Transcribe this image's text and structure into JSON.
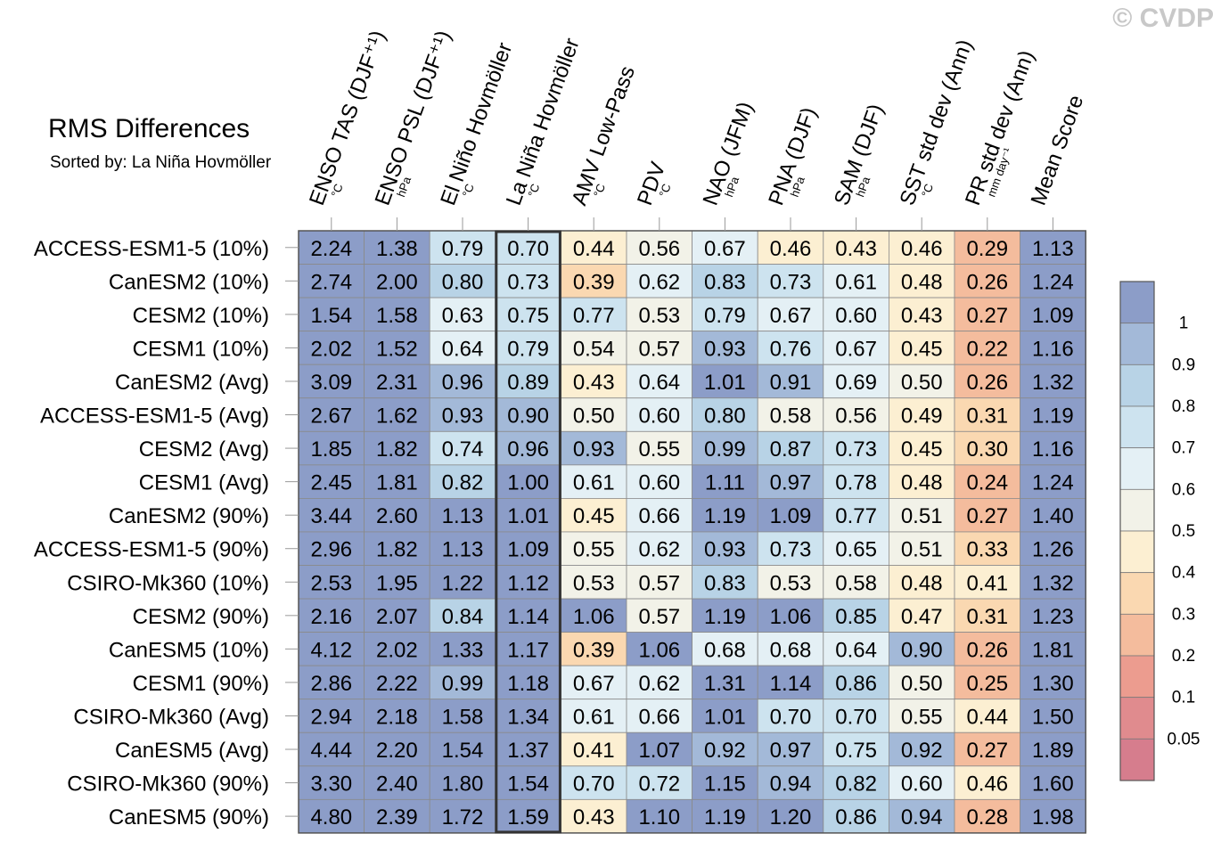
{
  "watermark": "© CVDP",
  "chart_data": {
    "type": "heatmap",
    "title": "RMS Differences",
    "subtitle": "Sorted by: La Niña Hovmöller",
    "columns": [
      {
        "label": "ENSO TAS (DJF⁺¹)",
        "unit": "°C"
      },
      {
        "label": "ENSO PSL (DJF⁺¹)",
        "unit": "hPa"
      },
      {
        "label": "El Niño Hovmöller",
        "unit": "°C"
      },
      {
        "label": "La Niña Hovmöller",
        "unit": "°C"
      },
      {
        "label": "AMV Low-Pass",
        "unit": "°C"
      },
      {
        "label": "PDV",
        "unit": "°C"
      },
      {
        "label": "NAO (JFM)",
        "unit": "hPa"
      },
      {
        "label": "PNA (DJF)",
        "unit": "hPa"
      },
      {
        "label": "SAM (DJF)",
        "unit": "hPa"
      },
      {
        "label": "SST std dev (Ann)",
        "unit": "°C"
      },
      {
        "label": "PR std dev (Ann)",
        "unit": "mm day⁻¹"
      },
      {
        "label": "Mean Score",
        "unit": ""
      }
    ],
    "sorted_column": "La Niña Hovmöller",
    "rows": [
      {
        "label": "ACCESS-ESM1-5 (10%)",
        "values": [
          2.24,
          1.38,
          0.79,
          0.7,
          0.44,
          0.56,
          0.67,
          0.46,
          0.43,
          0.46,
          0.29,
          1.13
        ]
      },
      {
        "label": "CanESM2 (10%)",
        "values": [
          2.74,
          2.0,
          0.8,
          0.73,
          0.39,
          0.62,
          0.83,
          0.73,
          0.61,
          0.48,
          0.26,
          1.24
        ]
      },
      {
        "label": "CESM2 (10%)",
        "values": [
          1.54,
          1.58,
          0.63,
          0.75,
          0.77,
          0.53,
          0.79,
          0.67,
          0.6,
          0.43,
          0.27,
          1.09
        ]
      },
      {
        "label": "CESM1 (10%)",
        "values": [
          2.02,
          1.52,
          0.64,
          0.79,
          0.54,
          0.57,
          0.93,
          0.76,
          0.67,
          0.45,
          0.22,
          1.16
        ]
      },
      {
        "label": "CanESM2 (Avg)",
        "values": [
          3.09,
          2.31,
          0.96,
          0.89,
          0.43,
          0.64,
          1.01,
          0.91,
          0.69,
          0.5,
          0.26,
          1.32
        ]
      },
      {
        "label": "ACCESS-ESM1-5 (Avg)",
        "values": [
          2.67,
          1.62,
          0.93,
          0.9,
          0.5,
          0.6,
          0.8,
          0.58,
          0.56,
          0.49,
          0.31,
          1.19
        ]
      },
      {
        "label": "CESM2 (Avg)",
        "values": [
          1.85,
          1.82,
          0.74,
          0.96,
          0.93,
          0.55,
          0.99,
          0.87,
          0.73,
          0.45,
          0.3,
          1.16
        ]
      },
      {
        "label": "CESM1 (Avg)",
        "values": [
          2.45,
          1.81,
          0.82,
          1.0,
          0.61,
          0.6,
          1.11,
          0.97,
          0.78,
          0.48,
          0.24,
          1.24
        ]
      },
      {
        "label": "CanESM2 (90%)",
        "values": [
          3.44,
          2.6,
          1.13,
          1.01,
          0.45,
          0.66,
          1.19,
          1.09,
          0.77,
          0.51,
          0.27,
          1.4
        ]
      },
      {
        "label": "ACCESS-ESM1-5 (90%)",
        "values": [
          2.96,
          1.82,
          1.13,
          1.09,
          0.55,
          0.62,
          0.93,
          0.73,
          0.65,
          0.51,
          0.33,
          1.26
        ]
      },
      {
        "label": "CSIRO-Mk360 (10%)",
        "values": [
          2.53,
          1.95,
          1.22,
          1.12,
          0.53,
          0.57,
          0.83,
          0.53,
          0.58,
          0.48,
          0.41,
          1.32
        ]
      },
      {
        "label": "CESM2 (90%)",
        "values": [
          2.16,
          2.07,
          0.84,
          1.14,
          1.06,
          0.57,
          1.19,
          1.06,
          0.85,
          0.47,
          0.31,
          1.23
        ]
      },
      {
        "label": "CanESM5 (10%)",
        "values": [
          4.12,
          2.02,
          1.33,
          1.17,
          0.39,
          1.06,
          0.68,
          0.68,
          0.64,
          0.9,
          0.26,
          1.81
        ]
      },
      {
        "label": "CESM1 (90%)",
        "values": [
          2.86,
          2.22,
          0.99,
          1.18,
          0.67,
          0.62,
          1.31,
          1.14,
          0.86,
          0.5,
          0.25,
          1.3
        ]
      },
      {
        "label": "CSIRO-Mk360 (Avg)",
        "values": [
          2.94,
          2.18,
          1.58,
          1.34,
          0.61,
          0.66,
          1.01,
          0.7,
          0.7,
          0.55,
          0.44,
          1.5
        ]
      },
      {
        "label": "CanESM5 (Avg)",
        "values": [
          4.44,
          2.2,
          1.54,
          1.37,
          0.41,
          1.07,
          0.92,
          0.97,
          0.75,
          0.92,
          0.27,
          1.89
        ]
      },
      {
        "label": "CSIRO-Mk360 (90%)",
        "values": [
          3.3,
          2.4,
          1.8,
          1.54,
          0.7,
          0.72,
          1.15,
          0.94,
          0.82,
          0.6,
          0.46,
          1.6
        ]
      },
      {
        "label": "CanESM5 (90%)",
        "values": [
          4.8,
          2.39,
          1.72,
          1.59,
          0.43,
          1.1,
          1.19,
          1.2,
          0.86,
          0.94,
          0.28,
          1.98
        ]
      }
    ],
    "colorbar": {
      "labels": [
        "1",
        "0.9",
        "0.8",
        "0.7",
        "0.6",
        "0.5",
        "0.4",
        "0.3",
        "0.2",
        "0.1",
        "0.05"
      ],
      "bins_top_to_bottom": [
        {
          "min": 1.0,
          "color": "#8c9dc8"
        },
        {
          "min": 0.9,
          "color": "#a3b9d8"
        },
        {
          "min": 0.8,
          "color": "#b8d3e6"
        },
        {
          "min": 0.7,
          "color": "#cde3ef"
        },
        {
          "min": 0.6,
          "color": "#e4f0f5"
        },
        {
          "min": 0.5,
          "color": "#f2f2e8"
        },
        {
          "min": 0.4,
          "color": "#fcefd2"
        },
        {
          "min": 0.3,
          "color": "#fad8b1"
        },
        {
          "min": 0.2,
          "color": "#f4bc9d"
        },
        {
          "min": 0.1,
          "color": "#ec9c8f"
        },
        {
          "min": 0.05,
          "color": "#e08b8e"
        },
        {
          "min": 0.0,
          "color": "#d67d8d"
        }
      ]
    }
  }
}
